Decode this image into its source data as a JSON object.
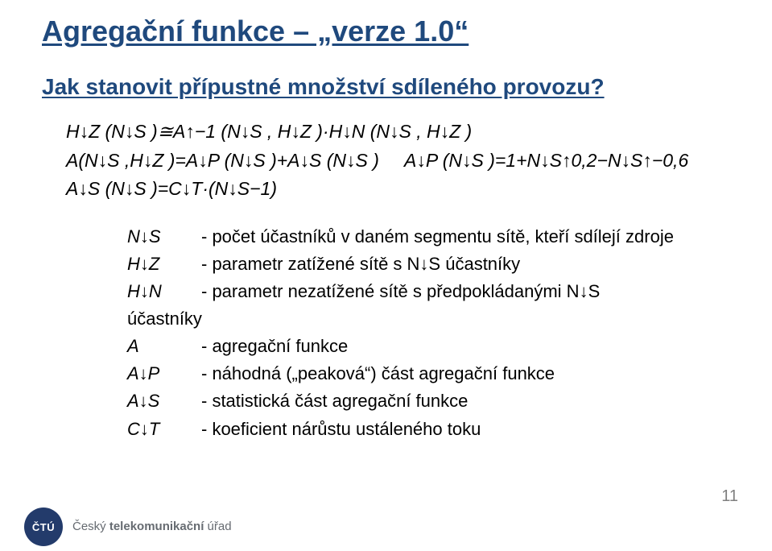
{
  "title": "Agregační funkce – „verze 1.0“",
  "subtitle": "Jak stanovit přípustné množství sdíleného provozu?",
  "formulas": {
    "line1": "H↓Z (N↓S )≅A↑−1 (N↓S , H↓Z )·H↓N (N↓S , H↓Z )",
    "line2_left": "A(N↓S ,H↓Z )=A↓P (N↓S )+A↓S (N↓S )",
    "line2_right": "A↓P (N↓S )=1+N↓S↑0,2−N↓S↑−0,6",
    "line3": "A↓S (N↓S )=C↓T·(N↓S−1)"
  },
  "legend": [
    {
      "sym": "N↓S",
      "desc": "- počet účastníků v daném segmentu sítě, kteří sdílejí zdroje"
    },
    {
      "sym": "H↓Z",
      "desc": "- parametr zatížené sítě s N↓S  účastníky"
    },
    {
      "sym": "H↓N",
      "desc": "- parametr nezatížené sítě s předpokládanými N↓S"
    },
    {
      "sym": "účastníky",
      "desc": ""
    },
    {
      "sym": "A",
      "desc": "- agregační funkce"
    },
    {
      "sym": "A↓P",
      "desc": "- náhodná („peaková“) část agregační funkce"
    },
    {
      "sym": "A↓S",
      "desc": "- statistická část agregační funkce"
    },
    {
      "sym": "C↓T",
      "desc": "- koeficient nárůstu ustáleného toku"
    }
  ],
  "footer": {
    "badge": "ČTÚ",
    "text_prefix": "Český ",
    "text_bold_frag": "telekomunikační",
    "text_suffix": " úřad"
  },
  "page_number": "11",
  "colors": {
    "heading": "#1f497d",
    "body": "#000000",
    "pagenum": "#7f7f7f",
    "badge_bg": "#233b6b",
    "footer_text": "#666b71",
    "background": "#ffffff"
  },
  "fonts": {
    "title_size_pt": 28,
    "subtitle_size_pt": 22,
    "formula_size_pt": 18,
    "legend_size_pt": 17,
    "title_weight": "bold"
  }
}
